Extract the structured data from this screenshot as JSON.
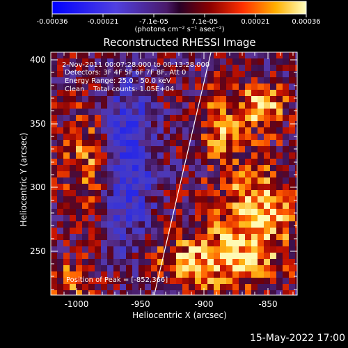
{
  "colorbar": {
    "tick_labels": [
      "-0.00036",
      "-0.00021",
      "-7.1e-05",
      "7.1e-05",
      "0.00021",
      "0.00036"
    ],
    "units": "(photons cm⁻² s⁻¹ asec⁻²)"
  },
  "title": "Reconstructed RHESSI Image",
  "info": {
    "time": "2-Nov-2011 00:07:28.000 to 00:13:28.000",
    "detectors": "Detectors: 3F 4F 5F 6F 7F 8F, Att 0",
    "energy": "Energy Range: 25.0 - 50.0 keV",
    "clean": "Clean    Total counts: 1.05E+04",
    "peak": "Position of Peak = [-852,366]"
  },
  "axes": {
    "xlabel": "Heliocentric X (arcsec)",
    "ylabel": "Heliocentric Y (arcsec)",
    "x_ticks": [
      "-1000",
      "-950",
      "-900",
      "-850"
    ],
    "y_ticks": [
      "400",
      "350",
      "300",
      "250"
    ],
    "xlim": [
      -1020,
      -827
    ],
    "ylim": [
      213,
      408
    ]
  },
  "footer": "15-May-2022 17:00",
  "colors": {
    "background": "#000000",
    "axis": "#ffffff",
    "limb_line": "#ffffff"
  }
}
